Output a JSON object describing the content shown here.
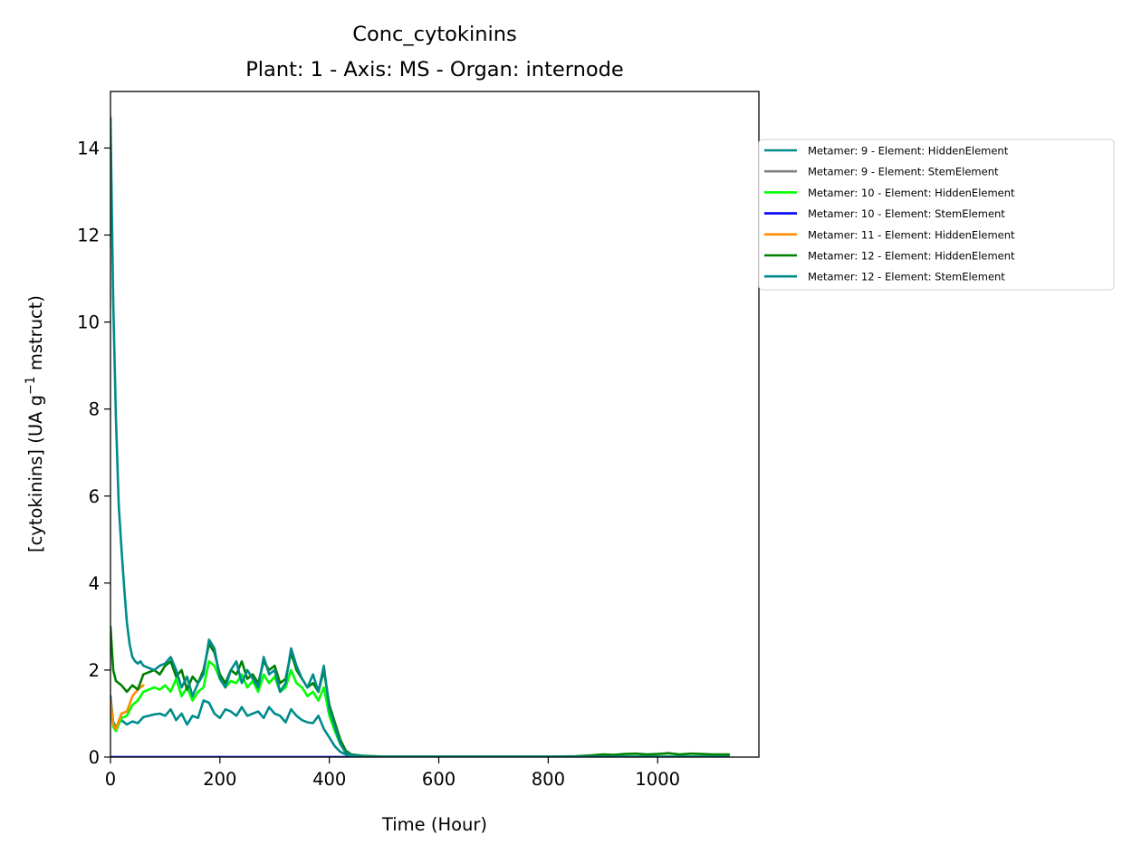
{
  "chart_data": {
    "type": "line",
    "title": "Conc_cytokinins",
    "subtitle": "Plant: 1 - Axis: MS - Organ: internode",
    "xlabel": "Time (Hour)",
    "ylabel_main": "[cytokinins] (UA g",
    "ylabel_sup": "−1",
    "ylabel_tail": " mstruct)",
    "xlim": [
      0,
      1185
    ],
    "ylim": [
      0,
      15.3
    ],
    "xticks": [
      0,
      200,
      400,
      600,
      800,
      1000
    ],
    "yticks": [
      0,
      2,
      4,
      6,
      8,
      10,
      12,
      14
    ],
    "grid": false,
    "legend_position": "right-outside",
    "series": [
      {
        "name": "Metamer: 9 - Element: HiddenElement",
        "color": "#008b8b",
        "x": [
          0,
          5,
          10,
          20,
          30,
          40,
          50,
          60,
          70,
          80,
          90,
          100,
          110,
          120,
          130,
          140,
          150,
          160,
          170,
          180,
          190,
          200,
          210,
          220,
          230,
          240,
          250,
          260,
          270,
          280,
          290,
          300,
          310,
          320,
          330,
          340,
          350,
          360,
          370,
          380,
          390,
          400,
          410,
          420,
          430,
          440,
          460,
          480,
          500,
          600,
          700,
          800,
          850,
          900,
          1000,
          1130
        ],
        "y": [
          1.4,
          0.8,
          0.7,
          0.85,
          0.75,
          0.82,
          0.78,
          0.92,
          0.95,
          0.98,
          1.0,
          0.95,
          1.1,
          0.85,
          1.0,
          0.75,
          0.95,
          0.9,
          1.3,
          1.25,
          1.0,
          0.9,
          1.1,
          1.05,
          0.95,
          1.15,
          0.95,
          1.0,
          1.05,
          0.9,
          1.15,
          1.0,
          0.95,
          0.8,
          1.1,
          0.95,
          0.85,
          0.8,
          0.78,
          0.95,
          0.65,
          0.45,
          0.25,
          0.12,
          0.06,
          0.03,
          0.02,
          0.01,
          0.01,
          0.01,
          0.01,
          0.01,
          0.01,
          0.01,
          0.01,
          0.01
        ]
      },
      {
        "name": "Metamer: 9 - Element: StemElement",
        "color": "#808080",
        "x": [
          0,
          1130
        ],
        "y": [
          0,
          0
        ]
      },
      {
        "name": "Metamer: 10 - Element: HiddenElement",
        "color": "#00ff00",
        "x": [
          0,
          5,
          10,
          20,
          30,
          40,
          50,
          60,
          70,
          80,
          90,
          100,
          110,
          120,
          130,
          140,
          150,
          160,
          170,
          180,
          190,
          200,
          210,
          220,
          230,
          240,
          250,
          260,
          270,
          280,
          290,
          300,
          310,
          320,
          330,
          340,
          350,
          360,
          370,
          380,
          390,
          400,
          410,
          420,
          430,
          440,
          460,
          480,
          500,
          600,
          700,
          800,
          850,
          900,
          1000,
          1130
        ],
        "y": [
          1.2,
          0.7,
          0.6,
          0.9,
          0.95,
          1.2,
          1.3,
          1.5,
          1.55,
          1.6,
          1.55,
          1.65,
          1.5,
          1.8,
          1.4,
          1.6,
          1.3,
          1.5,
          1.6,
          2.2,
          2.1,
          1.8,
          1.6,
          1.75,
          1.7,
          1.9,
          1.6,
          1.75,
          1.5,
          1.9,
          1.7,
          1.85,
          1.5,
          1.6,
          2.0,
          1.7,
          1.6,
          1.4,
          1.5,
          1.3,
          1.6,
          0.95,
          0.6,
          0.3,
          0.12,
          0.05,
          0.03,
          0.02,
          0.01,
          0.01,
          0.01,
          0.01,
          0.01,
          0.01,
          0.01,
          0.01
        ]
      },
      {
        "name": "Metamer: 10 - Element: StemElement",
        "color": "#0000ff",
        "x": [
          0,
          1130
        ],
        "y": [
          0,
          0
        ]
      },
      {
        "name": "Metamer: 11 - Element: HiddenElement",
        "color": "#ff8c00",
        "x": [
          0,
          5,
          10,
          20,
          30,
          40,
          50,
          60
        ],
        "y": [
          1.3,
          0.75,
          0.65,
          1.0,
          1.05,
          1.4,
          1.55,
          1.65
        ]
      },
      {
        "name": "Metamer: 12 - Element: HiddenElement",
        "color": "#008000",
        "x": [
          0,
          5,
          10,
          20,
          30,
          40,
          50,
          60,
          70,
          80,
          90,
          100,
          110,
          120,
          130,
          140,
          150,
          160,
          170,
          180,
          190,
          200,
          210,
          220,
          230,
          240,
          250,
          260,
          270,
          280,
          290,
          300,
          310,
          320,
          330,
          340,
          350,
          360,
          370,
          380,
          390,
          400,
          410,
          420,
          430,
          440,
          460,
          480,
          500,
          600,
          700,
          800,
          850,
          880,
          900,
          920,
          940,
          960,
          980,
          1000,
          1020,
          1040,
          1060,
          1080,
          1100,
          1130
        ],
        "y": [
          3.0,
          2.0,
          1.75,
          1.65,
          1.5,
          1.65,
          1.55,
          1.9,
          1.95,
          2.0,
          1.9,
          2.1,
          2.2,
          1.85,
          2.0,
          1.55,
          1.85,
          1.7,
          2.0,
          2.6,
          2.4,
          1.9,
          1.7,
          2.0,
          1.9,
          2.2,
          1.8,
          1.9,
          1.7,
          2.2,
          2.0,
          2.1,
          1.7,
          1.8,
          2.4,
          2.0,
          1.8,
          1.6,
          1.7,
          1.5,
          2.0,
          1.2,
          0.8,
          0.4,
          0.15,
          0.06,
          0.03,
          0.02,
          0.01,
          0.01,
          0.01,
          0.01,
          0.02,
          0.04,
          0.06,
          0.05,
          0.07,
          0.08,
          0.06,
          0.07,
          0.09,
          0.06,
          0.08,
          0.07,
          0.06,
          0.06
        ]
      },
      {
        "name": "Metamer: 12 - Element: StemElement",
        "color": "#008b8b",
        "x": [
          0,
          5,
          10,
          15,
          20,
          25,
          30,
          35,
          40,
          45,
          50,
          55,
          60,
          70,
          80,
          90,
          100,
          110,
          120,
          130,
          140,
          150,
          160,
          170,
          180,
          190,
          200,
          210,
          220,
          230,
          240,
          250,
          260,
          270,
          280,
          290,
          300,
          310,
          320,
          330,
          340,
          350,
          360,
          370,
          380,
          390,
          400,
          410,
          420,
          430,
          440,
          460,
          480,
          500,
          600,
          700,
          800,
          900,
          1000,
          1130
        ],
        "y": [
          14.7,
          10.5,
          7.8,
          5.8,
          4.8,
          3.9,
          3.1,
          2.6,
          2.3,
          2.2,
          2.15,
          2.2,
          2.1,
          2.05,
          2.0,
          2.1,
          2.15,
          2.3,
          2.0,
          1.6,
          1.85,
          1.4,
          1.7,
          1.9,
          2.7,
          2.5,
          1.8,
          1.6,
          2.0,
          2.2,
          1.7,
          2.0,
          1.8,
          1.6,
          2.3,
          1.9,
          2.0,
          1.5,
          1.7,
          2.5,
          2.1,
          1.8,
          1.6,
          1.9,
          1.5,
          2.1,
          1.1,
          0.7,
          0.3,
          0.1,
          0.05,
          0.02,
          0.01,
          0.01,
          0.01,
          0.01,
          0.01,
          0.01,
          0.01,
          0.01
        ]
      }
    ]
  }
}
